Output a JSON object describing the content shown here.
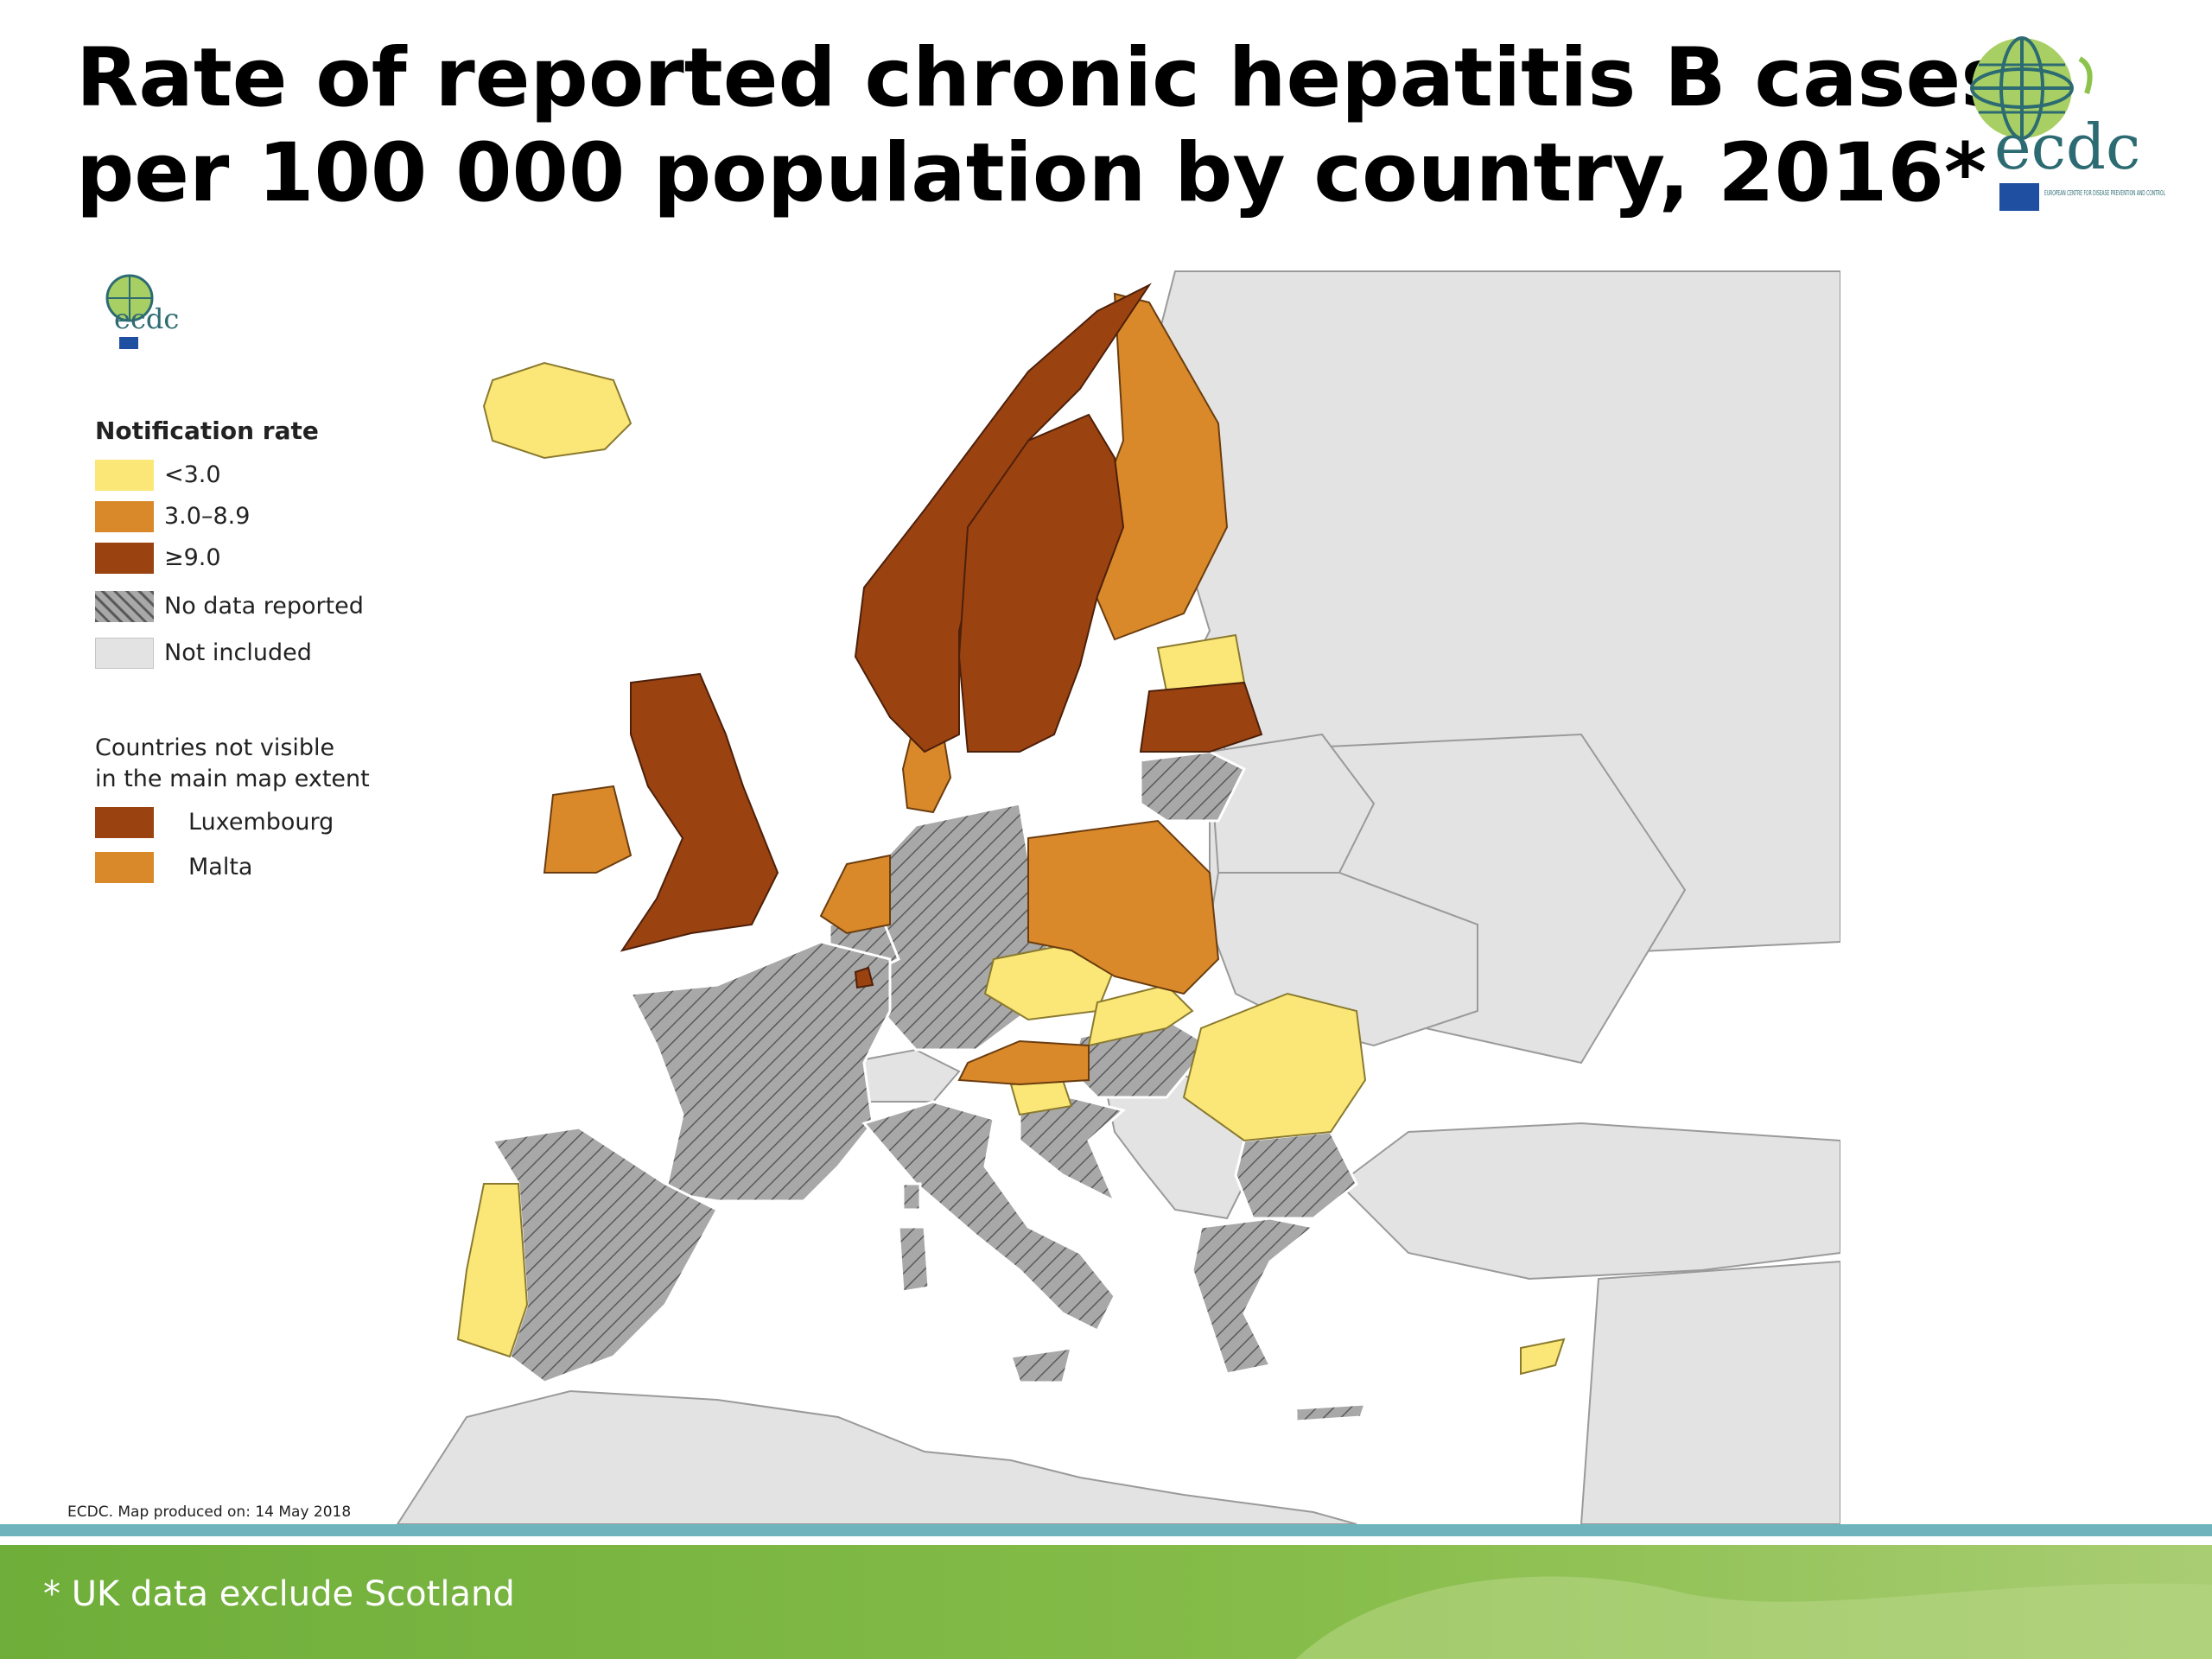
{
  "title": {
    "line1": "Rate of reported chronic hepatitis B cases",
    "line2": "per 100 000 population by country, 2016*"
  },
  "logo": {
    "text": "ecdc",
    "subtext": "EUROPEAN CENTRE FOR DISEASE PREVENTION AND CONTROL"
  },
  "legend": {
    "title": "Notification rate",
    "items": [
      {
        "label": "<3.0",
        "color": "#fbe777"
      },
      {
        "label": "3.0–8.9",
        "color": "#d9892a"
      },
      {
        "label": "≥9.0",
        "color": "#9b4211"
      },
      {
        "label": "No data reported",
        "color": "#a8a8a8"
      },
      {
        "label": "Not included",
        "color": "#e3e3e3"
      }
    ]
  },
  "inset": {
    "title_line1": "Countries not visible",
    "title_line2": "in the main map extent",
    "items": [
      {
        "label": "Luxembourg",
        "color": "#9b4211"
      },
      {
        "label": "Malta",
        "color": "#d9892a"
      }
    ]
  },
  "credit": "ECDC. Map produced on: 14 May 2018",
  "footnote": "* UK data exclude Scotland",
  "map": {
    "countries": [
      {
        "name": "Iceland",
        "category": "<3.0"
      },
      {
        "name": "Norway",
        "category": "≥9.0"
      },
      {
        "name": "Sweden",
        "category": "≥9.0"
      },
      {
        "name": "Finland",
        "category": "3.0–8.9"
      },
      {
        "name": "Estonia",
        "category": "<3.0"
      },
      {
        "name": "Latvia",
        "category": "≥9.0"
      },
      {
        "name": "Lithuania",
        "category": "No data reported"
      },
      {
        "name": "Denmark",
        "category": "3.0–8.9"
      },
      {
        "name": "Ireland",
        "category": "3.0–8.9"
      },
      {
        "name": "United Kingdom",
        "category": "≥9.0"
      },
      {
        "name": "Netherlands",
        "category": "3.0–8.9"
      },
      {
        "name": "Belgium",
        "category": "No data reported"
      },
      {
        "name": "Luxembourg",
        "category": "≥9.0"
      },
      {
        "name": "Germany",
        "category": "No data reported"
      },
      {
        "name": "Poland",
        "category": "3.0–8.9"
      },
      {
        "name": "Czechia",
        "category": "<3.0"
      },
      {
        "name": "Slovakia",
        "category": "<3.0"
      },
      {
        "name": "Austria",
        "category": "3.0–8.9"
      },
      {
        "name": "Hungary",
        "category": "No data reported"
      },
      {
        "name": "Slovenia",
        "category": "<3.0"
      },
      {
        "name": "Croatia",
        "category": "No data reported"
      },
      {
        "name": "Romania",
        "category": "<3.0"
      },
      {
        "name": "Bulgaria",
        "category": "No data reported"
      },
      {
        "name": "Greece",
        "category": "No data reported"
      },
      {
        "name": "Italy",
        "category": "No data reported"
      },
      {
        "name": "France",
        "category": "No data reported"
      },
      {
        "name": "Spain",
        "category": "No data reported"
      },
      {
        "name": "Portugal",
        "category": "<3.0"
      },
      {
        "name": "Cyprus",
        "category": "<3.0"
      },
      {
        "name": "Malta",
        "category": "3.0–8.9"
      },
      {
        "name": "Switzerland",
        "category": "Not included"
      }
    ]
  }
}
